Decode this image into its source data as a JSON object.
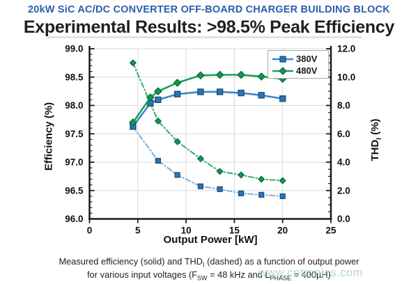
{
  "header": {
    "kicker": "20kW SiC AC/DC CONVERTER OFF-BOARD CHARGER BUILDING BLOCK",
    "title": "Experimental Results: >98.5% Peak Efficiency"
  },
  "chart_data": {
    "type": "line",
    "xlabel": "Output Power [kW]",
    "ylabel_left": "Efficiency (%)",
    "ylabel_right": {
      "pre": "THD",
      "sub": "I",
      "post": "(%)"
    },
    "xlim": [
      0,
      25
    ],
    "ylim_left": [
      96.0,
      99.0
    ],
    "ylim_right": [
      0.0,
      12.0
    ],
    "grid": true,
    "legend_position": "top-right-inside",
    "x_ticks": [
      "0",
      "5",
      "10",
      "15",
      "20",
      "25"
    ],
    "y_ticks_left": [
      "96.0",
      "96.5",
      "97.0",
      "97.5",
      "98.0",
      "98.5",
      "99.0"
    ],
    "y_ticks_right": [
      "0.0",
      "2.0",
      "4.0",
      "6.0",
      "8.0",
      "10.0",
      "12.0"
    ],
    "legend": [
      {
        "label": "380V"
      },
      {
        "label": "480V"
      }
    ],
    "series": [
      {
        "name": "380V",
        "quantity": "efficiency",
        "axis": "left",
        "line": "solid",
        "marker": "square",
        "line_color": "#3e86c9",
        "marker_fill": "#2e75b6",
        "marker_stroke": "#17517e",
        "x": [
          4.5,
          6.3,
          7.1,
          9.1,
          11.5,
          13.5,
          15.7,
          17.8,
          20
        ],
        "y": [
          97.63,
          98.04,
          98.1,
          98.2,
          98.24,
          98.24,
          98.22,
          98.18,
          98.12
        ]
      },
      {
        "name": "480V",
        "quantity": "efficiency",
        "axis": "left",
        "line": "solid",
        "marker": "diamond",
        "line_color": "#17a05c",
        "marker_fill": "#149653",
        "marker_stroke": "#0b6b3a",
        "x": [
          4.5,
          6.3,
          7.1,
          9.1,
          11.5,
          13.5,
          15.7,
          17.8,
          20
        ],
        "y": [
          97.7,
          98.14,
          98.25,
          98.4,
          98.53,
          98.54,
          98.54,
          98.51,
          98.47
        ]
      },
      {
        "name": "380V",
        "quantity": "THD",
        "axis": "right",
        "line": "dashdot",
        "marker": "square",
        "line_color": "#7fb2e0",
        "marker_fill": "#2e75b6",
        "marker_stroke": "#17517e",
        "x": [
          4.5,
          7.1,
          9.1,
          11.5,
          13.5,
          15.7,
          17.8,
          20
        ],
        "y": [
          6.5,
          4.1,
          3.1,
          2.3,
          2.1,
          1.8,
          1.7,
          1.6
        ]
      },
      {
        "name": "480V",
        "quantity": "THD",
        "axis": "right",
        "line": "dashdot",
        "marker": "diamond",
        "line_color": "#3db072",
        "marker_fill": "#149653",
        "marker_stroke": "#0b6b3a",
        "x": [
          4.5,
          7.1,
          9.1,
          11.5,
          13.5,
          15.7,
          17.8,
          20
        ],
        "y": [
          11.0,
          6.9,
          5.45,
          4.25,
          3.35,
          3.1,
          2.8,
          2.7
        ]
      }
    ]
  },
  "caption": {
    "line1_pre": "Measured efficiency (solid) and THD",
    "line1_sub": "I",
    "line1_post": " (dashed) as a function of output power",
    "line2_pre": "for various input voltages (F",
    "line2_sub1": "SW",
    "line2_mid": " = 48 kHz and L",
    "line2_sub2": "PHASE",
    "line2_post": " = 400µH)"
  },
  "watermark": {
    "text": "www.cntronics.com"
  },
  "colors": {
    "header_blue": "#2b5dad",
    "title_text": "#1f1f1f",
    "grid": "#d9d9d9",
    "axis": "#1a1a1a",
    "tick_text": "#111111",
    "blue_line": "#3e86c9",
    "blue_marker": "#2e75b6",
    "green_line": "#17a05c",
    "green_marker": "#149653",
    "watermark_green": "#9fd6a8",
    "legend_border": "#a9a9a9"
  }
}
